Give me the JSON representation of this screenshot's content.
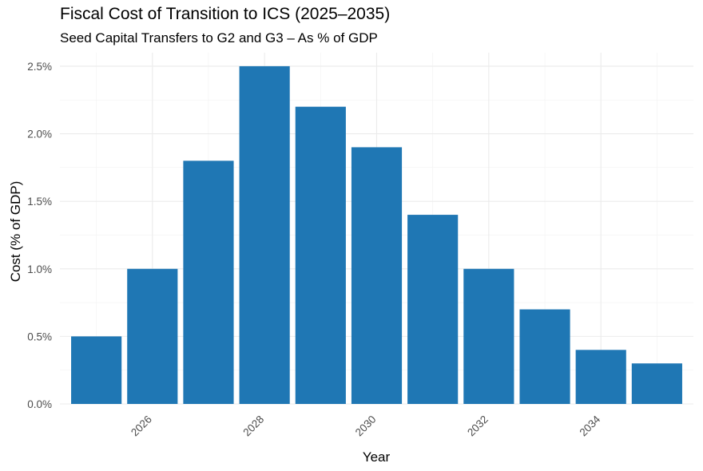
{
  "chart_data": {
    "type": "bar",
    "title": "Fiscal Cost of Transition to ICS (2025–2035)",
    "subtitle": "Seed Capital Transfers to G2 and G3 – As % of GDP",
    "xlabel": "Year",
    "ylabel": "Cost (% of GDP)",
    "categories": [
      2025,
      2026,
      2027,
      2028,
      2029,
      2030,
      2031,
      2032,
      2033,
      2034,
      2035
    ],
    "values": [
      0.5,
      1.0,
      1.8,
      2.5,
      2.2,
      1.9,
      1.4,
      1.0,
      0.7,
      0.4,
      0.3
    ],
    "ylim": [
      0,
      2.6
    ],
    "xlim": [
      2024.35,
      2035.65
    ],
    "y_ticks": [
      0,
      0.5,
      1.0,
      1.5,
      2.0,
      2.5
    ],
    "y_tick_labels": [
      "0.0%",
      "0.5%",
      "1.0%",
      "1.5%",
      "2.0%",
      "2.5%"
    ],
    "x_ticks": [
      2026,
      2028,
      2030,
      2032,
      2034
    ],
    "x_tick_labels": [
      "2026",
      "2028",
      "2030",
      "2032",
      "2034"
    ],
    "bar_color": "#1f77b4",
    "grid": true,
    "legend": "none"
  }
}
